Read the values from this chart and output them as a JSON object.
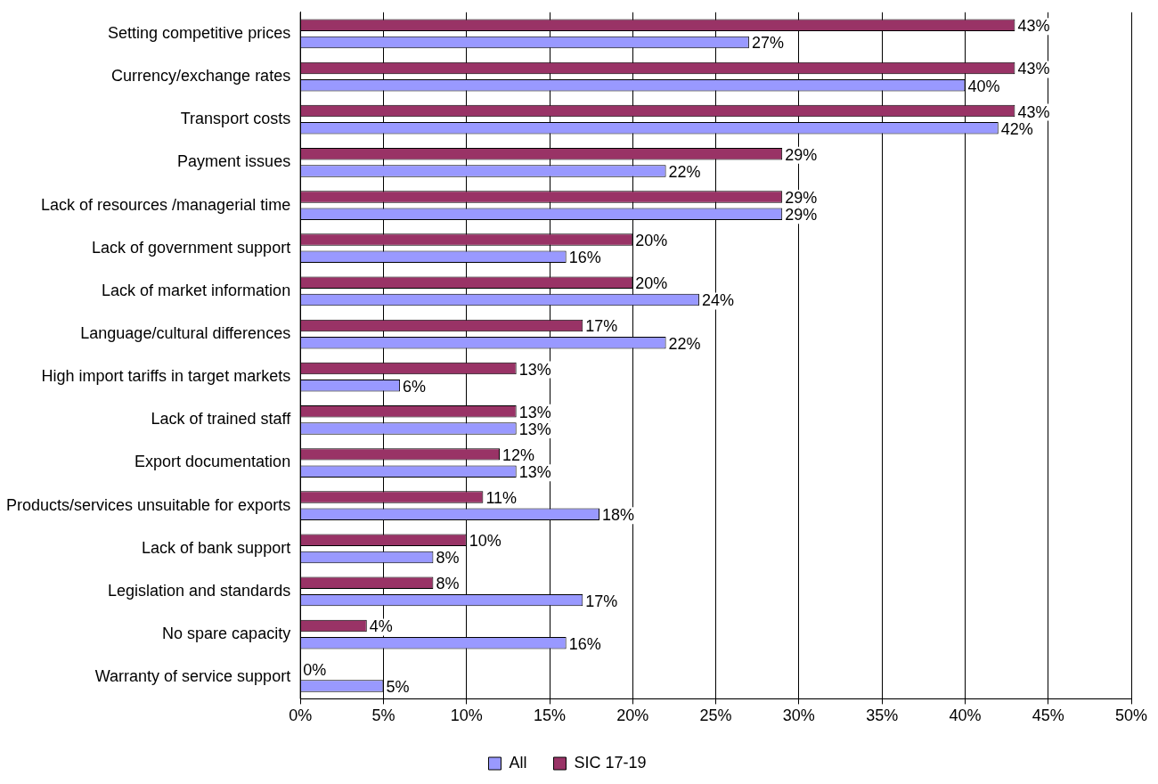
{
  "chart_data": {
    "type": "bar",
    "orientation": "horizontal",
    "categories": [
      "Setting competitive prices",
      "Currency/exchange rates",
      "Transport costs",
      "Payment issues",
      "Lack of resources /managerial time",
      "Lack of government support",
      "Lack of market information",
      "Language/cultural differences",
      "High import tariffs in target markets",
      "Lack of trained staff",
      "Export documentation",
      "Products/services unsuitable for exports",
      "Lack of bank support",
      "Legislation and standards",
      "No spare capacity",
      "Warranty of service support"
    ],
    "series": [
      {
        "name": "SIC 17-19",
        "color": "#993366",
        "values": [
          43,
          43,
          43,
          29,
          29,
          20,
          20,
          17,
          13,
          13,
          12,
          11,
          10,
          8,
          4,
          0
        ],
        "value_labels": [
          "43%",
          "43%",
          "43%",
          "29%",
          "29%",
          "20%",
          "20%",
          "17%",
          "13%",
          "13%",
          "12%",
          "11%",
          "10%",
          "8%",
          "4%",
          "0%"
        ]
      },
      {
        "name": "All",
        "color": "#9999ff",
        "values": [
          27,
          40,
          42,
          22,
          29,
          16,
          24,
          22,
          6,
          13,
          13,
          18,
          8,
          17,
          16,
          5
        ],
        "value_labels": [
          "27%",
          "40%",
          "42%",
          "22%",
          "29%",
          "16%",
          "24%",
          "22%",
          "6%",
          "13%",
          "13%",
          "18%",
          "8%",
          "17%",
          "16%",
          "5%"
        ]
      }
    ],
    "xlim": [
      0,
      50
    ],
    "xticks": [
      {
        "value": 0,
        "label": "0%"
      },
      {
        "value": 5,
        "label": "5%"
      },
      {
        "value": 10,
        "label": "10%"
      },
      {
        "value": 15,
        "label": "15%"
      },
      {
        "value": 20,
        "label": "20%"
      },
      {
        "value": 25,
        "label": "25%"
      },
      {
        "value": 30,
        "label": "30%"
      },
      {
        "value": 35,
        "label": "35%"
      },
      {
        "value": 40,
        "label": "40%"
      },
      {
        "value": 45,
        "label": "45%"
      },
      {
        "value": 50,
        "label": "50%"
      }
    ],
    "grid": "x",
    "legend": "bottom"
  }
}
